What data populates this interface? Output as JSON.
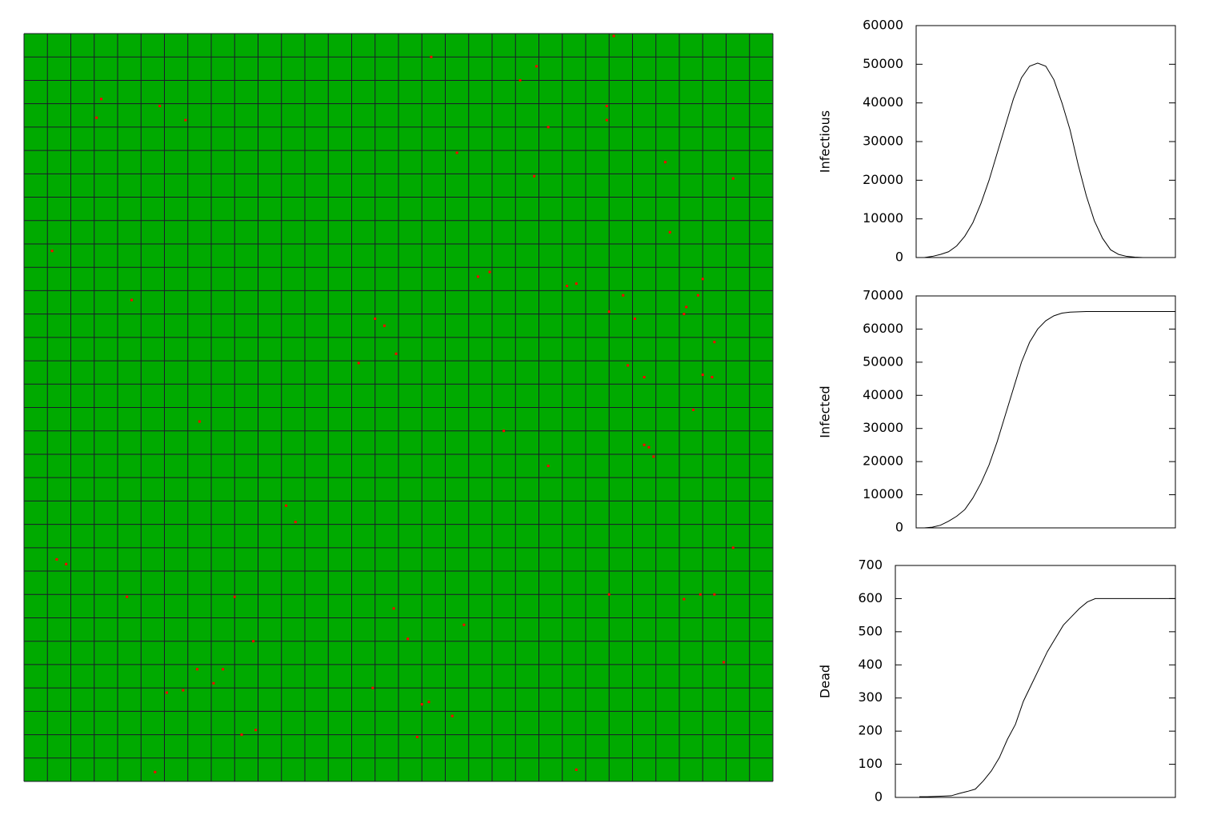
{
  "chart_data": [
    {
      "type": "scatter",
      "color": "#ff0000",
      "background": "#00aa00",
      "grid": true,
      "xlim": [
        0,
        32
      ],
      "ylim": [
        32,
        0
      ],
      "x": [
        25.2,
        17.4,
        21.9,
        21.2,
        3.3,
        5.8,
        24.9,
        3.1,
        6.9,
        24.9,
        22.4,
        18.5,
        27.4,
        21.8,
        30.3,
        27.6,
        1.2,
        19.9,
        19.4,
        29.0,
        23.2,
        23.6,
        4.6,
        25.6,
        28.8,
        28.3,
        28.2,
        25.0,
        15.0,
        26.1,
        15.4,
        29.5,
        15.9,
        14.3,
        25.8,
        29.0,
        29.4,
        26.5,
        28.6,
        7.5,
        20.5,
        26.5,
        26.7,
        26.9,
        22.4,
        11.2,
        11.6,
        30.3,
        1.4,
        1.8,
        4.4,
        9.0,
        25.0,
        28.2,
        28.9,
        29.5,
        15.8,
        18.8,
        16.4,
        9.8,
        29.9,
        7.4,
        8.5,
        8.1,
        6.8,
        6.1,
        14.9,
        17.3,
        17.0,
        18.3,
        9.3,
        9.9,
        16.8,
        5.6,
        23.6
      ],
      "y": [
        0.1,
        1.0,
        1.4,
        2.0,
        2.8,
        3.1,
        3.1,
        3.6,
        3.7,
        3.7,
        4.0,
        5.1,
        5.5,
        6.1,
        6.2,
        8.5,
        9.3,
        10.2,
        10.4,
        10.5,
        10.8,
        10.7,
        11.4,
        11.2,
        11.2,
        11.7,
        12.0,
        11.9,
        12.2,
        12.2,
        12.5,
        13.2,
        13.7,
        14.1,
        14.2,
        14.6,
        14.7,
        14.7,
        16.1,
        16.6,
        17.0,
        17.6,
        17.7,
        18.1,
        18.5,
        20.2,
        20.9,
        22.0,
        22.5,
        22.7,
        24.1,
        24.1,
        24.0,
        24.2,
        24.0,
        24.0,
        24.6,
        25.3,
        25.9,
        26.0,
        26.9,
        27.2,
        27.2,
        27.8,
        28.1,
        28.2,
        28.0,
        28.6,
        28.7,
        29.2,
        30.0,
        29.8,
        30.1,
        31.6,
        31.5
      ]
    },
    {
      "type": "line",
      "ylabel": "Infectious",
      "color": "#000000",
      "ylim": [
        0,
        60000
      ],
      "yticks": [
        0,
        10000,
        20000,
        30000,
        40000,
        50000,
        60000
      ],
      "values": [
        0,
        0,
        300,
        800,
        1500,
        3000,
        5500,
        9000,
        14000,
        20000,
        27000,
        34000,
        41000,
        46500,
        49500,
        50300,
        49500,
        46000,
        40000,
        33000,
        24000,
        16000,
        9500,
        5000,
        2000,
        800,
        300,
        100,
        0,
        0,
        0,
        0,
        0
      ]
    },
    {
      "type": "line",
      "ylabel": "Infected",
      "color": "#000000",
      "ylim": [
        0,
        70000
      ],
      "yticks": [
        0,
        10000,
        20000,
        30000,
        40000,
        50000,
        60000,
        70000
      ],
      "values": [
        0,
        0,
        200,
        800,
        2000,
        3500,
        5500,
        9000,
        13500,
        19000,
        26000,
        34000,
        42000,
        50000,
        56000,
        60000,
        62500,
        64000,
        64800,
        65100,
        65200,
        65300,
        65300,
        65300,
        65300,
        65300,
        65300,
        65300,
        65300,
        65300,
        65300,
        65300,
        65300
      ]
    },
    {
      "type": "line",
      "ylabel": "Dead",
      "color": "#000000",
      "ylim": [
        0,
        700
      ],
      "yticks": [
        0,
        100,
        200,
        300,
        400,
        500,
        600,
        700
      ],
      "values": [
        null,
        null,
        null,
        2,
        2,
        3,
        4,
        5,
        12,
        18,
        25,
        50,
        80,
        120,
        175,
        220,
        290,
        340,
        390,
        440,
        480,
        520,
        545,
        570,
        590,
        600,
        600,
        600,
        600,
        600,
        600,
        600,
        600,
        600,
        600,
        600
      ]
    }
  ]
}
